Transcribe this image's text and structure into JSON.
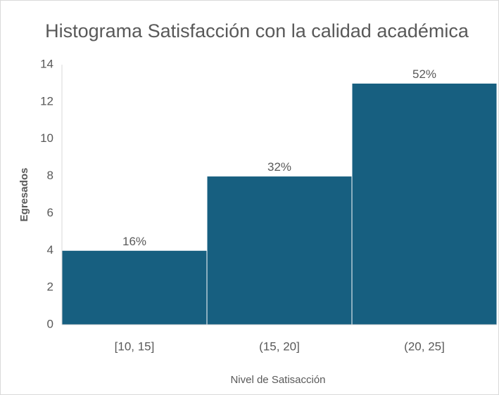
{
  "chart_data": {
    "type": "bar",
    "title": "Histograma Satisfacción con la calidad académica",
    "x_label": "Nivel de Satisacción",
    "y_label": "Egresados",
    "categories": [
      "[10, 15]",
      "(15, 20]",
      "(20, 25]"
    ],
    "values": [
      4,
      8,
      13
    ],
    "annotations": [
      "16%",
      "32%",
      "52%"
    ],
    "color": "#175f80",
    "ylim": [
      0,
      14
    ],
    "yticks": [
      0,
      2,
      4,
      6,
      8,
      10,
      12,
      14
    ],
    "grid": false
  }
}
